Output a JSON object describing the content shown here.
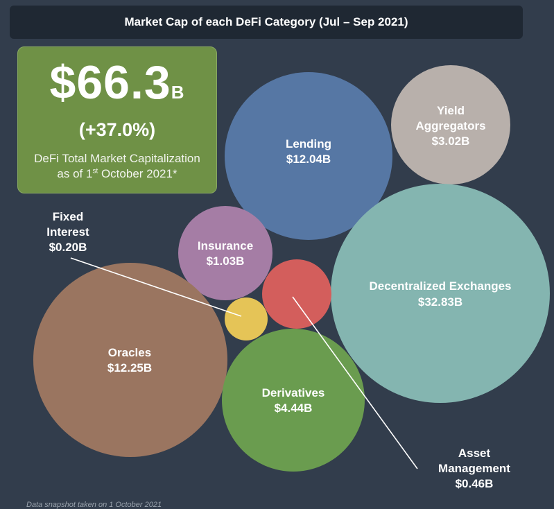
{
  "chart_data": {
    "type": "bubble",
    "title": "Market Cap of each DeFi Category (Jul – Sep 2021)",
    "unit": "USD billions",
    "bubbles": [
      {
        "name": "Lending",
        "value": 12.04,
        "label": "$12.04B",
        "color": "#5677a4"
      },
      {
        "name": "Yield Aggregators",
        "value": 3.02,
        "label": "$3.02B",
        "color": "#b8b0ab"
      },
      {
        "name": "Decentralized Exchanges",
        "value": 32.83,
        "label": "$32.83B",
        "color": "#84b5b0"
      },
      {
        "name": "Insurance",
        "value": 1.03,
        "label": "$1.03B",
        "color": "#a57da5"
      },
      {
        "name": "Asset Management",
        "value": 0.46,
        "label": "$0.46B",
        "color": "#d35e5c"
      },
      {
        "name": "Fixed Interest",
        "value": 0.2,
        "label": "$0.20B",
        "color": "#e5c457"
      },
      {
        "name": "Oracles",
        "value": 12.25,
        "label": "$12.25B",
        "color": "#9a7560"
      },
      {
        "name": "Derivatives",
        "value": 4.44,
        "label": "$4.44B",
        "color": "#6a9c4f"
      }
    ]
  },
  "total": {
    "value": "$66.3",
    "unit": "B",
    "change": "(+37.0%)",
    "caption_line1": "DeFi Total Market Capitalization",
    "caption_line2_pre": "as of 1",
    "caption_line2_sup": "st",
    "caption_line2_post": " October 2021*"
  },
  "labels": {
    "lending_name": "Lending",
    "yield_name_1": "Yield",
    "yield_name_2": "Aggregators",
    "dex_name": "Decentralized Exchanges",
    "insurance_name": "Insurance",
    "oracles_name": "Oracles",
    "derivatives_name": "Derivatives",
    "fixed_name_1": "Fixed",
    "fixed_name_2": "Interest",
    "asset_name_1": "Asset",
    "asset_name_2": "Management"
  },
  "footnote": "Data snapshot taken on 1 October 2021"
}
